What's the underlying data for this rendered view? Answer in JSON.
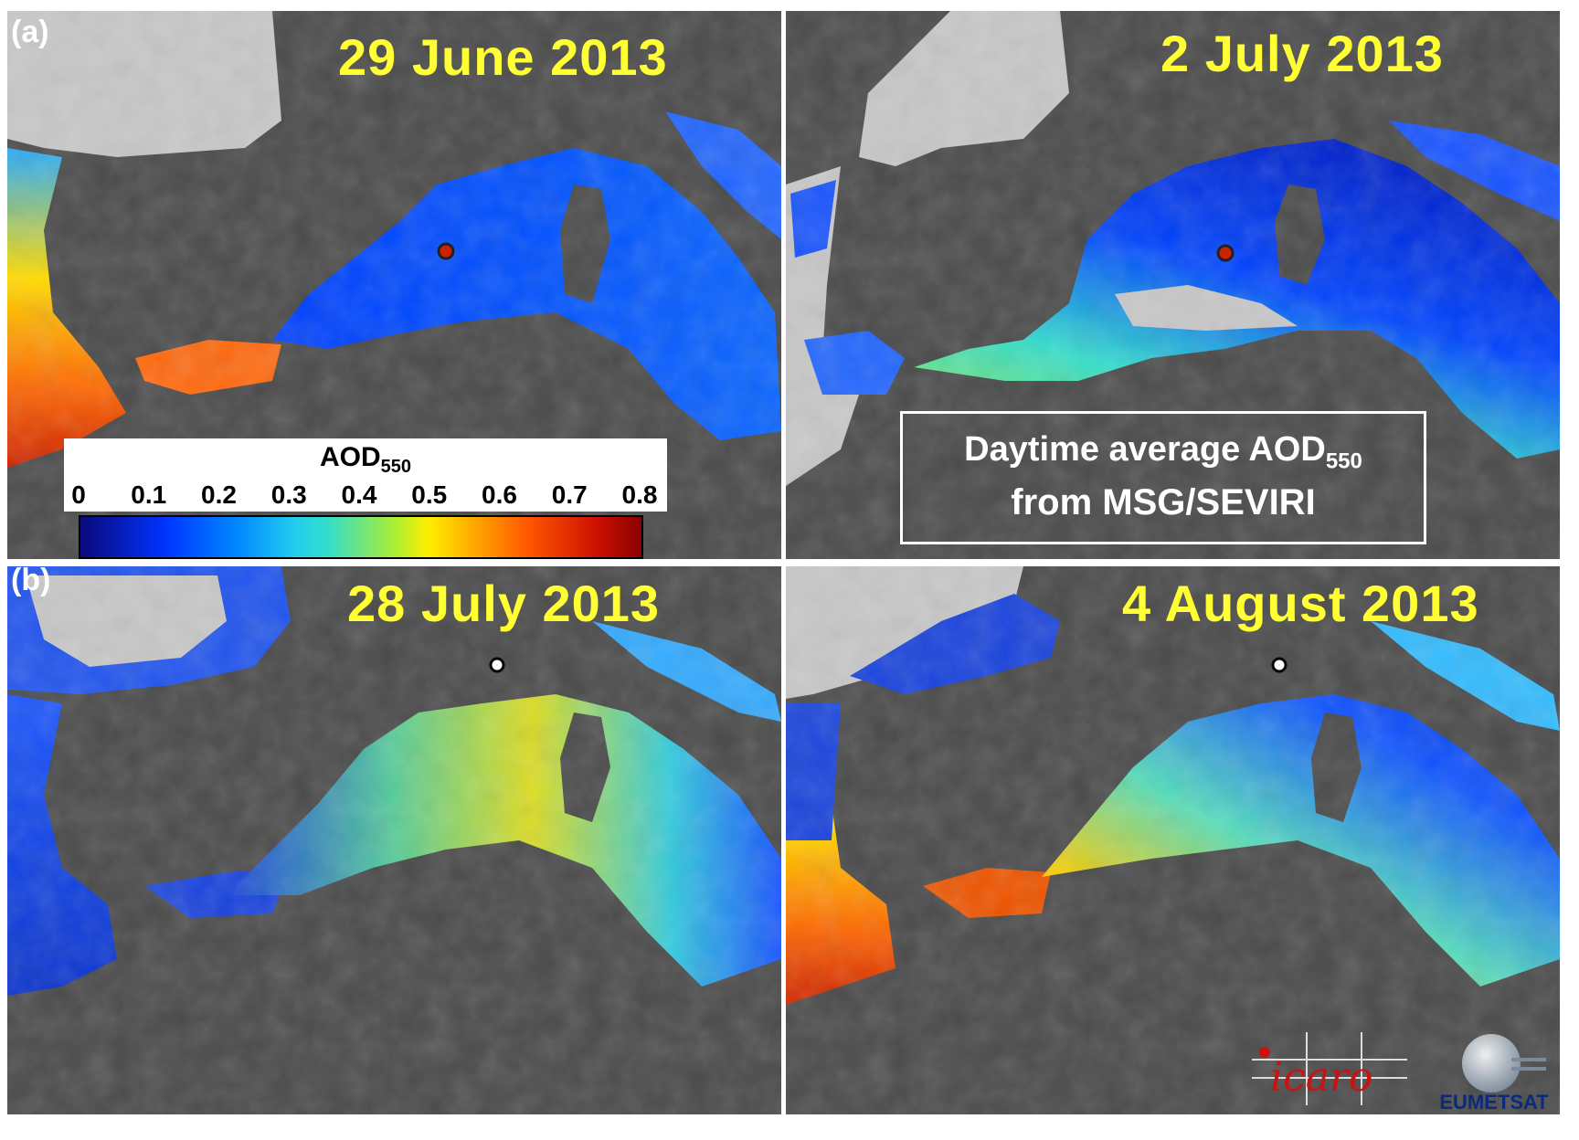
{
  "panel_labels": {
    "a": "(a)",
    "b": "(b)"
  },
  "panels": {
    "a1": {
      "date": "29 June 2013",
      "site_marker": "red-dot"
    },
    "a2": {
      "date": "2 July 2013",
      "site_marker": "red-dot"
    },
    "b1": {
      "date": "28 July 2013",
      "site_marker": "white-ring"
    },
    "b2": {
      "date": "4 August 2013",
      "site_marker": "white-ring"
    }
  },
  "colorbar": {
    "title": "AOD",
    "title_sub": "550",
    "ticks": [
      "0",
      "0.1",
      "0.2",
      "0.3",
      "0.4",
      "0.5",
      "0.6",
      "0.7",
      "0.8"
    ],
    "range": [
      0,
      0.8
    ]
  },
  "note": {
    "line1": "Daytime average AOD",
    "line1_sub": "550",
    "line2": "from MSG/SEVIRI"
  },
  "logos": {
    "icaro": "icaro",
    "eumetsat": "EUMETSAT"
  },
  "colors": {
    "land": "#4a4a4a",
    "missing": "#c8c8c8",
    "date_text": "#ffff33",
    "low": "#0033ff",
    "mid": "#33ddcc",
    "high": "#ffee00",
    "max": "#cc1100"
  }
}
